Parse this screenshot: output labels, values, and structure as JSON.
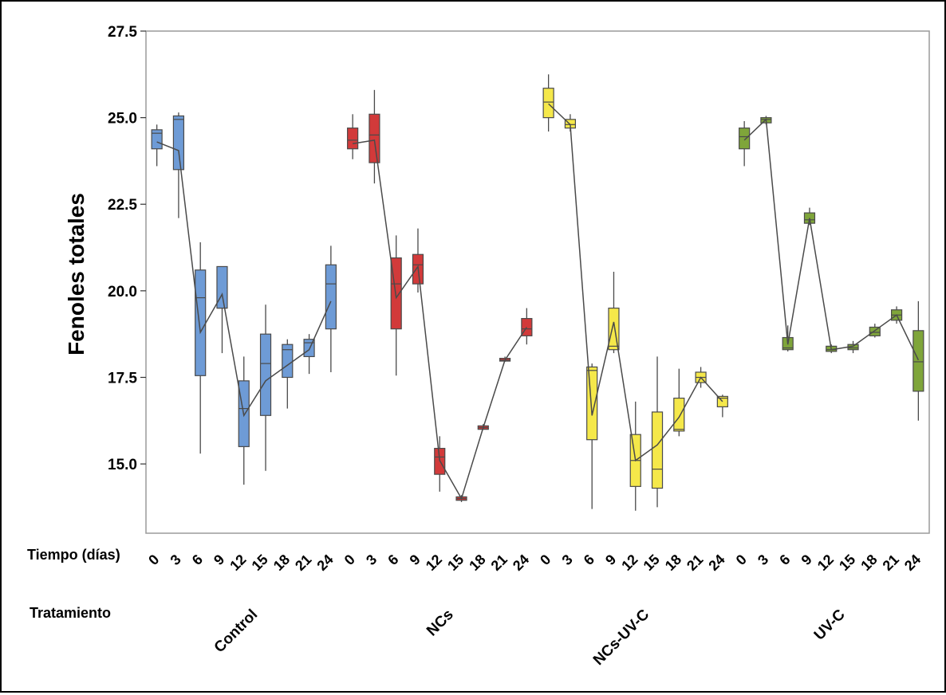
{
  "chart_data": {
    "type": "boxplot",
    "ylabel": "Fenoles totales",
    "ylim": [
      13.0,
      27.5
    ],
    "yticks": [
      15.0,
      17.5,
      20.0,
      22.5,
      25.0,
      27.5
    ],
    "ytick_labels": [
      "15.0",
      "17.5",
      "20.0",
      "22.5",
      "25.0",
      "27.5"
    ],
    "grid": false,
    "row_labels": {
      "time": "Tiempo (días)",
      "treatment": "Tratamiento"
    },
    "groups": [
      {
        "name": "Control",
        "color": "#6E9BD6",
        "boxes": [
          {
            "day": "0",
            "min": 23.6,
            "q1": 24.1,
            "median": 24.55,
            "q3": 24.65,
            "max": 24.8,
            "mean": 24.3
          },
          {
            "day": "3",
            "min": 22.1,
            "q1": 23.5,
            "median": 24.95,
            "q3": 25.05,
            "max": 25.15,
            "mean": 24.05
          },
          {
            "day": "6",
            "min": 15.3,
            "q1": 17.55,
            "median": 19.8,
            "q3": 20.6,
            "max": 21.4,
            "mean": 18.8
          },
          {
            "day": "9",
            "min": 18.2,
            "q1": 19.5,
            "median": 19.5,
            "q3": 20.7,
            "max": 20.7,
            "mean": 19.9
          },
          {
            "day": "12",
            "min": 14.4,
            "q1": 15.5,
            "median": 16.6,
            "q3": 17.4,
            "max": 18.1,
            "mean": 16.4
          },
          {
            "day": "15",
            "min": 14.8,
            "q1": 16.4,
            "median": 17.9,
            "q3": 18.75,
            "max": 19.6,
            "mean": 17.4
          },
          {
            "day": "18",
            "min": 16.6,
            "q1": 17.5,
            "median": 18.3,
            "q3": 18.45,
            "max": 18.6,
            "mean": 17.85
          },
          {
            "day": "21",
            "min": 17.6,
            "q1": 18.1,
            "median": 18.5,
            "q3": 18.6,
            "max": 18.75,
            "mean": 18.3
          },
          {
            "day": "24",
            "min": 17.65,
            "q1": 18.9,
            "median": 20.2,
            "q3": 20.75,
            "max": 21.3,
            "mean": 19.7
          }
        ]
      },
      {
        "name": "NCs",
        "color": "#D23A3A",
        "boxes": [
          {
            "day": "0",
            "min": 23.8,
            "q1": 24.1,
            "median": 24.35,
            "q3": 24.7,
            "max": 25.1,
            "mean": 24.25
          },
          {
            "day": "3",
            "min": 23.1,
            "q1": 23.7,
            "median": 24.5,
            "q3": 25.1,
            "max": 25.8,
            "mean": 24.35
          },
          {
            "day": "6",
            "min": 17.55,
            "q1": 18.9,
            "median": 20.2,
            "q3": 20.95,
            "max": 21.6,
            "mean": 19.8
          },
          {
            "day": "9",
            "min": 19.95,
            "q1": 20.2,
            "median": 20.75,
            "q3": 21.05,
            "max": 21.8,
            "mean": 20.7
          },
          {
            "day": "12",
            "min": 14.2,
            "q1": 14.7,
            "median": 15.2,
            "q3": 15.45,
            "max": 15.8,
            "mean": 15.1
          },
          {
            "day": "15",
            "min": 13.9,
            "q1": 13.95,
            "median": 14.0,
            "q3": 14.05,
            "max": 14.1,
            "mean": 14.0
          },
          {
            "day": "18",
            "min": 16.0,
            "q1": 16.0,
            "median": 16.05,
            "q3": 16.1,
            "max": 16.15,
            "mean": 16.05
          },
          {
            "day": "21",
            "min": 17.95,
            "q1": 17.97,
            "median": 18.0,
            "q3": 18.05,
            "max": 18.1,
            "mean": 18.0
          },
          {
            "day": "24",
            "min": 18.45,
            "q1": 18.7,
            "median": 18.9,
            "q3": 19.2,
            "max": 19.5,
            "mean": 18.95
          }
        ]
      },
      {
        "name": "NCs-UV-C",
        "color": "#F5E84A",
        "boxes": [
          {
            "day": "0",
            "min": 24.6,
            "q1": 25.0,
            "median": 25.45,
            "q3": 25.85,
            "max": 26.25,
            "mean": 25.4
          },
          {
            "day": "3",
            "min": 24.6,
            "q1": 24.7,
            "median": 24.8,
            "q3": 24.95,
            "max": 25.1,
            "mean": 24.8
          },
          {
            "day": "6",
            "min": 13.7,
            "q1": 15.7,
            "median": 17.7,
            "q3": 17.8,
            "max": 17.9,
            "mean": 16.4
          },
          {
            "day": "9",
            "min": 18.2,
            "q1": 18.3,
            "median": 18.4,
            "q3": 19.5,
            "max": 20.55,
            "mean": 19.1
          },
          {
            "day": "12",
            "min": 13.65,
            "q1": 14.35,
            "median": 15.1,
            "q3": 15.85,
            "max": 16.8,
            "mean": 15.1
          },
          {
            "day": "15",
            "min": 13.75,
            "q1": 14.3,
            "median": 14.85,
            "q3": 16.5,
            "max": 18.1,
            "mean": 15.55
          },
          {
            "day": "18",
            "min": 15.8,
            "q1": 15.95,
            "median": 16.0,
            "q3": 16.9,
            "max": 17.75,
            "mean": 16.35
          },
          {
            "day": "21",
            "min": 17.2,
            "q1": 17.35,
            "median": 17.5,
            "q3": 17.65,
            "max": 17.8,
            "mean": 17.5
          },
          {
            "day": "24",
            "min": 16.35,
            "q1": 16.65,
            "median": 16.9,
            "q3": 16.95,
            "max": 17.0,
            "mean": 16.8
          }
        ]
      },
      {
        "name": "UV-C",
        "color": "#7FA53A",
        "boxes": [
          {
            "day": "0",
            "min": 23.6,
            "q1": 24.1,
            "median": 24.45,
            "q3": 24.7,
            "max": 24.9,
            "mean": 24.35
          },
          {
            "day": "3",
            "min": 24.8,
            "q1": 24.85,
            "median": 24.95,
            "q3": 25.0,
            "max": 25.05,
            "mean": 24.95
          },
          {
            "day": "6",
            "min": 18.25,
            "q1": 18.3,
            "median": 18.35,
            "q3": 18.65,
            "max": 19.0,
            "mean": 18.45
          },
          {
            "day": "9",
            "min": 21.9,
            "q1": 21.95,
            "median": 22.05,
            "q3": 22.25,
            "max": 22.4,
            "mean": 22.1
          },
          {
            "day": "12",
            "min": 18.2,
            "q1": 18.25,
            "median": 18.3,
            "q3": 18.4,
            "max": 18.45,
            "mean": 18.3
          },
          {
            "day": "15",
            "min": 18.2,
            "q1": 18.3,
            "median": 18.35,
            "q3": 18.45,
            "max": 18.55,
            "mean": 18.4
          },
          {
            "day": "18",
            "min": 18.65,
            "q1": 18.7,
            "median": 18.8,
            "q3": 18.95,
            "max": 19.05,
            "mean": 18.85
          },
          {
            "day": "21",
            "min": 19.05,
            "q1": 19.15,
            "median": 19.3,
            "q3": 19.45,
            "max": 19.55,
            "mean": 19.3
          },
          {
            "day": "24",
            "min": 16.25,
            "q1": 17.1,
            "median": 17.95,
            "q3": 18.85,
            "max": 19.7,
            "mean": 18.0
          }
        ]
      }
    ]
  }
}
